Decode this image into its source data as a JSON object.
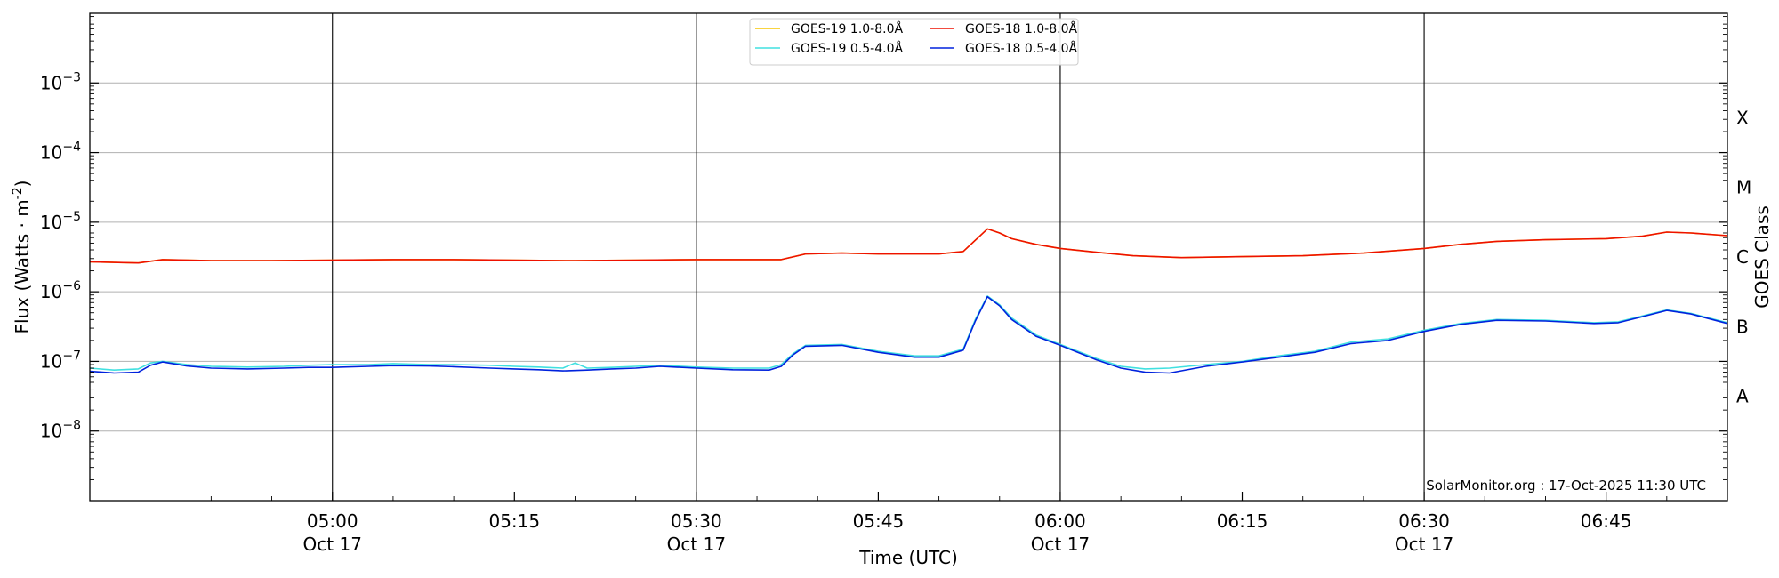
{
  "chart_data": {
    "type": "line",
    "xlabel": "Time (UTC)",
    "ylabel": "Flux (Watts · m",
    "ylabel_sup": "-2",
    "ylabel_close": ")",
    "right_label": "GOES Class",
    "credit": "SolarMonitor.org : 17-Oct-2025 11:30 UTC",
    "y_scale": "log",
    "ylim": [
      1e-09,
      0.01
    ],
    "xlim": [
      "04:40",
      "06:55"
    ],
    "grid": "horizontal at decades",
    "legend_position": "top-center",
    "y_ticks": [
      {
        "value": 1e-08,
        "base": "10",
        "exp": "−8"
      },
      {
        "value": 1e-07,
        "base": "10",
        "exp": "−7"
      },
      {
        "value": 1e-06,
        "base": "10",
        "exp": "−6"
      },
      {
        "value": 1e-05,
        "base": "10",
        "exp": "−5"
      },
      {
        "value": 0.0001,
        "base": "10",
        "exp": "−4"
      },
      {
        "value": 0.001,
        "base": "10",
        "exp": "−3"
      }
    ],
    "x_ticks": [
      {
        "time": "05:00",
        "label": "05:00",
        "date": "Oct 17",
        "vline": true
      },
      {
        "time": "05:15",
        "label": "05:15",
        "date": "",
        "vline": false
      },
      {
        "time": "05:30",
        "label": "05:30",
        "date": "Oct 17",
        "vline": true
      },
      {
        "time": "05:45",
        "label": "05:45",
        "date": "",
        "vline": false
      },
      {
        "time": "06:00",
        "label": "06:00",
        "date": "Oct 17",
        "vline": true
      },
      {
        "time": "06:15",
        "label": "06:15",
        "date": "",
        "vline": false
      },
      {
        "time": "06:30",
        "label": "06:30",
        "date": "Oct 17",
        "vline": true
      },
      {
        "time": "06:45",
        "label": "06:45",
        "date": "",
        "vline": false
      }
    ],
    "classes": [
      {
        "label": "A",
        "low": 1e-08,
        "high": 1e-07
      },
      {
        "label": "B",
        "low": 1e-07,
        "high": 1e-06
      },
      {
        "label": "C",
        "low": 1e-06,
        "high": 1e-05
      },
      {
        "label": "M",
        "low": 1e-05,
        "high": 0.0001
      },
      {
        "label": "X",
        "low": 0.0001,
        "high": 0.001
      }
    ],
    "legend": [
      {
        "name": "GOES-19 1.0-8.0Å",
        "color": "#f7c600"
      },
      {
        "name": "GOES-19 0.5-4.0Å",
        "color": "#40e0e0"
      },
      {
        "name": "GOES-18 1.0-8.0Å",
        "color": "#ee1100"
      },
      {
        "name": "GOES-18 0.5-4.0Å",
        "color": "#0022dd"
      }
    ],
    "series": [
      {
        "name": "GOES-19 1.0-8.0Å",
        "color": "#f7c600",
        "points": [
          [
            "04:40",
            2.7e-06
          ],
          [
            "04:44",
            2.6e-06
          ],
          [
            "04:46",
            2.9e-06
          ],
          [
            "04:50",
            2.8e-06
          ],
          [
            "04:55",
            2.8e-06
          ],
          [
            "05:00",
            2.85e-06
          ],
          [
            "05:05",
            2.9e-06
          ],
          [
            "05:10",
            2.9e-06
          ],
          [
            "05:15",
            2.85e-06
          ],
          [
            "05:20",
            2.8e-06
          ],
          [
            "05:25",
            2.85e-06
          ],
          [
            "05:30",
            2.9e-06
          ],
          [
            "05:35",
            2.9e-06
          ],
          [
            "05:37",
            2.9e-06
          ],
          [
            "05:39",
            3.5e-06
          ],
          [
            "05:42",
            3.6e-06
          ],
          [
            "05:45",
            3.5e-06
          ],
          [
            "05:50",
            3.5e-06
          ],
          [
            "05:52",
            3.8e-06
          ],
          [
            "05:54",
            8e-06
          ],
          [
            "05:55",
            7e-06
          ],
          [
            "05:56",
            5.8e-06
          ],
          [
            "05:58",
            4.8e-06
          ],
          [
            "06:00",
            4.2e-06
          ],
          [
            "06:03",
            3.7e-06
          ],
          [
            "06:06",
            3.3e-06
          ],
          [
            "06:10",
            3.1e-06
          ],
          [
            "06:15",
            3.2e-06
          ],
          [
            "06:20",
            3.3e-06
          ],
          [
            "06:25",
            3.6e-06
          ],
          [
            "06:30",
            4.2e-06
          ],
          [
            "06:33",
            4.8e-06
          ],
          [
            "06:36",
            5.3e-06
          ],
          [
            "06:40",
            5.6e-06
          ],
          [
            "06:45",
            5.8e-06
          ],
          [
            "06:48",
            6.3e-06
          ],
          [
            "06:50",
            7.2e-06
          ],
          [
            "06:52",
            7e-06
          ],
          [
            "06:55",
            6.4e-06
          ]
        ]
      },
      {
        "name": "GOES-19 0.5-4.0Å",
        "color": "#40e0e0",
        "points": [
          [
            "04:40",
            8e-08
          ],
          [
            "04:42",
            7.5e-08
          ],
          [
            "04:44",
            7.8e-08
          ],
          [
            "04:45",
            9.5e-08
          ],
          [
            "04:46",
            1e-07
          ],
          [
            "04:48",
            9e-08
          ],
          [
            "04:50",
            8.5e-08
          ],
          [
            "04:53",
            8.3e-08
          ],
          [
            "04:56",
            8.5e-08
          ],
          [
            "04:58",
            8.8e-08
          ],
          [
            "05:00",
            9e-08
          ],
          [
            "05:03",
            9e-08
          ],
          [
            "05:05",
            9.3e-08
          ],
          [
            "05:08",
            9e-08
          ],
          [
            "05:10",
            9e-08
          ],
          [
            "05:13",
            8.8e-08
          ],
          [
            "05:15",
            8.5e-08
          ],
          [
            "05:17",
            8.3e-08
          ],
          [
            "05:19",
            8e-08
          ],
          [
            "05:20",
            9.5e-08
          ],
          [
            "05:21",
            8e-08
          ],
          [
            "05:23",
            8.2e-08
          ],
          [
            "05:25",
            8.5e-08
          ],
          [
            "05:27",
            8.8e-08
          ],
          [
            "05:30",
            8.3e-08
          ],
          [
            "05:33",
            8e-08
          ],
          [
            "05:36",
            8e-08
          ],
          [
            "05:37",
            9e-08
          ],
          [
            "05:38",
            1.3e-07
          ],
          [
            "05:39",
            1.7e-07
          ],
          [
            "05:42",
            1.75e-07
          ],
          [
            "05:45",
            1.4e-07
          ],
          [
            "05:48",
            1.2e-07
          ],
          [
            "05:50",
            1.2e-07
          ],
          [
            "05:52",
            1.5e-07
          ],
          [
            "05:53",
            4e-07
          ],
          [
            "05:54",
            8.7e-07
          ],
          [
            "05:55",
            6.5e-07
          ],
          [
            "05:56",
            4.2e-07
          ],
          [
            "05:58",
            2.4e-07
          ],
          [
            "06:00",
            1.75e-07
          ],
          [
            "06:03",
            1.1e-07
          ],
          [
            "06:05",
            8.5e-08
          ],
          [
            "06:07",
            7.8e-08
          ],
          [
            "06:09",
            8e-08
          ],
          [
            "06:12",
            9e-08
          ],
          [
            "06:15",
            1e-07
          ],
          [
            "06:18",
            1.2e-07
          ],
          [
            "06:21",
            1.4e-07
          ],
          [
            "06:24",
            1.9e-07
          ],
          [
            "06:27",
            2.1e-07
          ],
          [
            "06:30",
            2.8e-07
          ],
          [
            "06:33",
            3.5e-07
          ],
          [
            "06:36",
            4e-07
          ],
          [
            "06:40",
            3.9e-07
          ],
          [
            "06:44",
            3.6e-07
          ],
          [
            "06:46",
            3.7e-07
          ],
          [
            "06:48",
            4.5e-07
          ],
          [
            "06:50",
            5.5e-07
          ],
          [
            "06:52",
            4.9e-07
          ],
          [
            "06:55",
            3.6e-07
          ]
        ]
      },
      {
        "name": "GOES-18 1.0-8.0Å",
        "color": "#ee1100",
        "points": [
          [
            "04:40",
            2.7e-06
          ],
          [
            "04:44",
            2.6e-06
          ],
          [
            "04:46",
            2.9e-06
          ],
          [
            "04:50",
            2.8e-06
          ],
          [
            "04:55",
            2.8e-06
          ],
          [
            "05:00",
            2.85e-06
          ],
          [
            "05:05",
            2.9e-06
          ],
          [
            "05:10",
            2.9e-06
          ],
          [
            "05:15",
            2.85e-06
          ],
          [
            "05:20",
            2.8e-06
          ],
          [
            "05:25",
            2.85e-06
          ],
          [
            "05:30",
            2.9e-06
          ],
          [
            "05:35",
            2.9e-06
          ],
          [
            "05:37",
            2.9e-06
          ],
          [
            "05:39",
            3.5e-06
          ],
          [
            "05:42",
            3.6e-06
          ],
          [
            "05:45",
            3.5e-06
          ],
          [
            "05:50",
            3.5e-06
          ],
          [
            "05:52",
            3.8e-06
          ],
          [
            "05:54",
            8e-06
          ],
          [
            "05:55",
            7e-06
          ],
          [
            "05:56",
            5.8e-06
          ],
          [
            "05:58",
            4.8e-06
          ],
          [
            "06:00",
            4.2e-06
          ],
          [
            "06:03",
            3.7e-06
          ],
          [
            "06:06",
            3.3e-06
          ],
          [
            "06:10",
            3.1e-06
          ],
          [
            "06:15",
            3.2e-06
          ],
          [
            "06:20",
            3.3e-06
          ],
          [
            "06:25",
            3.6e-06
          ],
          [
            "06:30",
            4.2e-06
          ],
          [
            "06:33",
            4.8e-06
          ],
          [
            "06:36",
            5.3e-06
          ],
          [
            "06:40",
            5.6e-06
          ],
          [
            "06:45",
            5.8e-06
          ],
          [
            "06:48",
            6.3e-06
          ],
          [
            "06:50",
            7.2e-06
          ],
          [
            "06:52",
            7e-06
          ],
          [
            "06:55",
            6.4e-06
          ]
        ]
      },
      {
        "name": "GOES-18 0.5-4.0Å",
        "color": "#0022dd",
        "points": [
          [
            "04:40",
            7.2e-08
          ],
          [
            "04:42",
            6.8e-08
          ],
          [
            "04:44",
            7e-08
          ],
          [
            "04:45",
            8.8e-08
          ],
          [
            "04:46",
            9.8e-08
          ],
          [
            "04:48",
            8.6e-08
          ],
          [
            "04:50",
            8e-08
          ],
          [
            "04:53",
            7.8e-08
          ],
          [
            "04:56",
            8e-08
          ],
          [
            "04:58",
            8.2e-08
          ],
          [
            "05:00",
            8.2e-08
          ],
          [
            "05:03",
            8.5e-08
          ],
          [
            "05:05",
            8.7e-08
          ],
          [
            "05:08",
            8.6e-08
          ],
          [
            "05:10",
            8.4e-08
          ],
          [
            "05:13",
            8e-08
          ],
          [
            "05:15",
            7.8e-08
          ],
          [
            "05:17",
            7.6e-08
          ],
          [
            "05:19",
            7.3e-08
          ],
          [
            "05:21",
            7.5e-08
          ],
          [
            "05:23",
            7.8e-08
          ],
          [
            "05:25",
            8e-08
          ],
          [
            "05:27",
            8.5e-08
          ],
          [
            "05:30",
            8e-08
          ],
          [
            "05:33",
            7.6e-08
          ],
          [
            "05:36",
            7.5e-08
          ],
          [
            "05:37",
            8.5e-08
          ],
          [
            "05:38",
            1.25e-07
          ],
          [
            "05:39",
            1.65e-07
          ],
          [
            "05:42",
            1.7e-07
          ],
          [
            "05:45",
            1.35e-07
          ],
          [
            "05:48",
            1.15e-07
          ],
          [
            "05:50",
            1.15e-07
          ],
          [
            "05:52",
            1.45e-07
          ],
          [
            "05:53",
            3.8e-07
          ],
          [
            "05:54",
            8.5e-07
          ],
          [
            "05:55",
            6.3e-07
          ],
          [
            "05:56",
            4e-07
          ],
          [
            "05:58",
            2.3e-07
          ],
          [
            "06:00",
            1.7e-07
          ],
          [
            "06:03",
            1.05e-07
          ],
          [
            "06:05",
            8e-08
          ],
          [
            "06:07",
            7e-08
          ],
          [
            "06:09",
            6.8e-08
          ],
          [
            "06:12",
            8.5e-08
          ],
          [
            "06:15",
            9.8e-08
          ],
          [
            "06:18",
            1.15e-07
          ],
          [
            "06:21",
            1.35e-07
          ],
          [
            "06:24",
            1.8e-07
          ],
          [
            "06:27",
            2e-07
          ],
          [
            "06:30",
            2.7e-07
          ],
          [
            "06:33",
            3.4e-07
          ],
          [
            "06:36",
            3.9e-07
          ],
          [
            "06:40",
            3.8e-07
          ],
          [
            "06:44",
            3.5e-07
          ],
          [
            "06:46",
            3.6e-07
          ],
          [
            "06:48",
            4.4e-07
          ],
          [
            "06:50",
            5.4e-07
          ],
          [
            "06:52",
            4.8e-07
          ],
          [
            "06:55",
            3.5e-07
          ]
        ]
      }
    ]
  }
}
